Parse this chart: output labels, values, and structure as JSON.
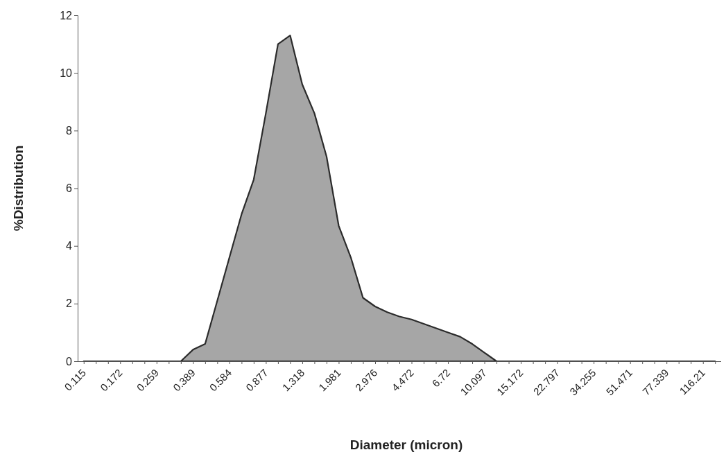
{
  "chart_data": {
    "type": "area",
    "xlabel": "Diameter (micron)",
    "ylabel": "%Distribution",
    "categories": [
      "0.115",
      null,
      null,
      "0.172",
      null,
      null,
      "0.259",
      null,
      null,
      "0.389",
      null,
      null,
      "0.584",
      null,
      null,
      "0.877",
      null,
      null,
      "1.318",
      null,
      null,
      "1.981",
      null,
      null,
      "2.976",
      null,
      null,
      "4.472",
      null,
      null,
      "6.72",
      null,
      null,
      "10.097",
      null,
      null,
      "15.172",
      null,
      null,
      "22.797",
      null,
      null,
      "34.255",
      null,
      null,
      "51.471",
      null,
      null,
      "77.339",
      null,
      null,
      "116.21",
      null
    ],
    "series": [
      {
        "color": "#a6a6a6",
        "values": [
          0,
          0,
          0,
          0,
          0,
          0,
          0,
          0,
          0,
          0.4,
          0.6,
          2.1,
          3.6,
          5.1,
          6.3,
          8.6,
          11.0,
          11.3,
          9.6,
          8.6,
          7.1,
          4.7,
          3.6,
          2.2,
          1.9,
          1.7,
          1.55,
          1.45,
          1.3,
          1.15,
          1.0,
          0.85,
          0.6,
          0.3,
          0,
          0,
          0,
          0,
          0,
          0,
          0,
          0,
          0,
          0,
          0,
          0,
          0,
          0,
          0,
          0,
          0,
          0,
          0
        ]
      }
    ],
    "ylim": [
      0,
      12
    ],
    "yticks": [
      0,
      2,
      4,
      6,
      8,
      10,
      12
    ],
    "grid": false
  }
}
